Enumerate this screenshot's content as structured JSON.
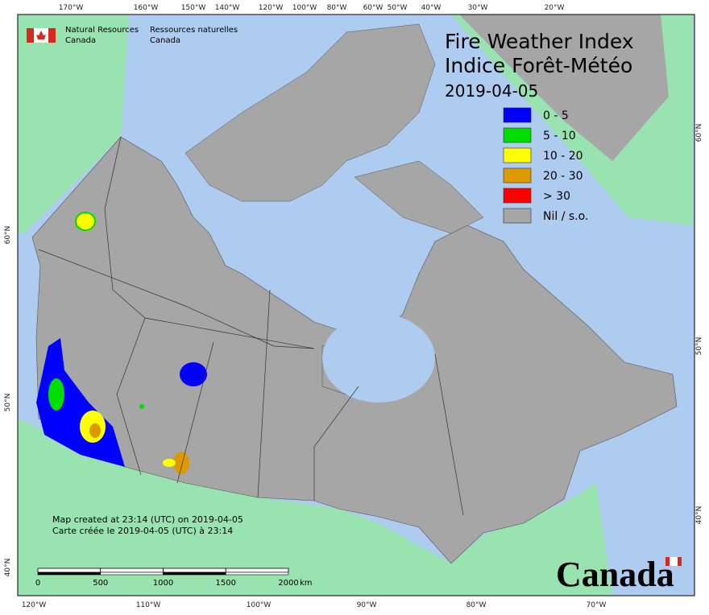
{
  "header": {
    "agency_en": [
      "Natural Resources",
      "Canada"
    ],
    "agency_fr": [
      "Ressources naturelles",
      "Canada"
    ]
  },
  "title": {
    "en": "Fire Weather Index",
    "fr": "Indice Forêt-Météo",
    "date": "2019-04-05"
  },
  "legend": [
    {
      "label": "0 - 5",
      "color": "#0000ff"
    },
    {
      "label": "5 - 10",
      "color": "#00dd00"
    },
    {
      "label": "10 - 20",
      "color": "#ffff00"
    },
    {
      "label": "20 - 30",
      "color": "#dd9900"
    },
    {
      "label": "> 30",
      "color": "#ff0000"
    },
    {
      "label": "Nil / s.o.",
      "color": "#a6a6a6"
    }
  ],
  "graticule": {
    "top": [
      "170°W",
      "160°W",
      "150°W",
      "140°W",
      "120°W",
      "100°W",
      "80°W",
      "60°W",
      "50°W",
      "40°W",
      "30°W",
      "20°W"
    ],
    "bottom": [
      "120°W",
      "110°W",
      "100°W",
      "90°W",
      "80°W",
      "70°W"
    ],
    "left": [
      "60°N",
      "50°N",
      "40°N"
    ],
    "right": [
      "60°N",
      "50°N",
      "40°N"
    ]
  },
  "notes": [
    "Map created at 23:14 (UTC) on 2019-04-05",
    "Carte créée le 2019-04-05 (UTC) à 23:14"
  ],
  "scale_bar": {
    "ticks": [
      0,
      500,
      1000,
      1500,
      2000
    ],
    "unit": "km"
  },
  "wordmark": "Canada"
}
